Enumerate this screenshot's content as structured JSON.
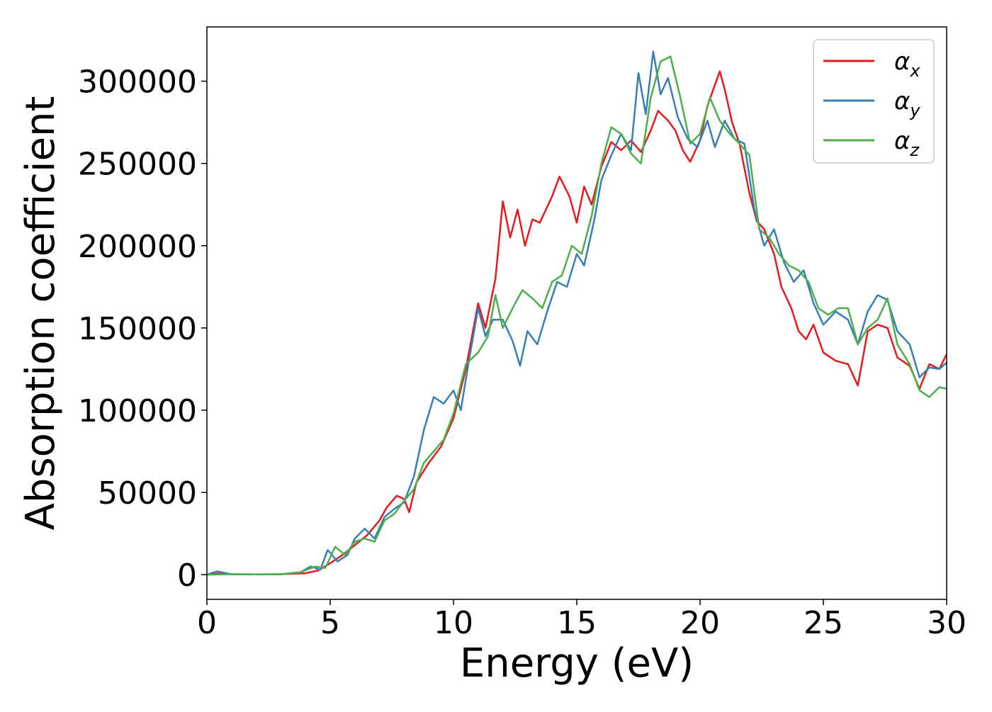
{
  "chart_data": {
    "type": "line",
    "xlabel": "Energy (eV)",
    "ylabel": "Absorption coefficient",
    "xlim": [
      0,
      30
    ],
    "ylim": [
      -15000,
      333000
    ],
    "xticks": [
      "0",
      "5",
      "10",
      "15",
      "20",
      "25",
      "30"
    ],
    "yticks": [
      "0",
      "50000",
      "100000",
      "150000",
      "200000",
      "250000",
      "300000"
    ],
    "grid": false,
    "legend_position": "top-right",
    "series": [
      {
        "name": "α",
        "subscript": "x",
        "color": "#e41a1c",
        "points": [
          [
            0,
            0
          ],
          [
            0.5,
            800
          ],
          [
            1,
            300
          ],
          [
            2,
            200
          ],
          [
            3,
            300
          ],
          [
            4,
            900
          ],
          [
            4.5,
            2500
          ],
          [
            5,
            7000
          ],
          [
            5.5,
            12000
          ],
          [
            6,
            18000
          ],
          [
            6.5,
            24000
          ],
          [
            7,
            33000
          ],
          [
            7.3,
            41000
          ],
          [
            7.7,
            48000
          ],
          [
            8,
            46000
          ],
          [
            8.2,
            38000
          ],
          [
            8.5,
            56000
          ],
          [
            9,
            68000
          ],
          [
            9.5,
            78000
          ],
          [
            10,
            95000
          ],
          [
            10.5,
            125000
          ],
          [
            11,
            165000
          ],
          [
            11.3,
            150000
          ],
          [
            11.7,
            180000
          ],
          [
            12,
            227000
          ],
          [
            12.3,
            205000
          ],
          [
            12.6,
            222000
          ],
          [
            12.9,
            200000
          ],
          [
            13.2,
            216000
          ],
          [
            13.5,
            214000
          ],
          [
            14,
            230000
          ],
          [
            14.3,
            242000
          ],
          [
            14.7,
            230000
          ],
          [
            15,
            214000
          ],
          [
            15.3,
            236000
          ],
          [
            15.6,
            225000
          ],
          [
            16,
            248000
          ],
          [
            16.4,
            263000
          ],
          [
            16.8,
            258000
          ],
          [
            17.2,
            264000
          ],
          [
            17.6,
            257000
          ],
          [
            18,
            270000
          ],
          [
            18.3,
            282000
          ],
          [
            18.7,
            276000
          ],
          [
            19,
            270000
          ],
          [
            19.3,
            258000
          ],
          [
            19.6,
            251000
          ],
          [
            20,
            264000
          ],
          [
            20.3,
            285000
          ],
          [
            20.8,
            306000
          ],
          [
            21,
            295000
          ],
          [
            21.3,
            275000
          ],
          [
            21.6,
            262000
          ],
          [
            22,
            232000
          ],
          [
            22.3,
            215000
          ],
          [
            22.6,
            210000
          ],
          [
            23,
            195000
          ],
          [
            23.3,
            175000
          ],
          [
            23.7,
            162000
          ],
          [
            24,
            148000
          ],
          [
            24.3,
            143000
          ],
          [
            24.6,
            152000
          ],
          [
            25,
            135000
          ],
          [
            25.5,
            130000
          ],
          [
            26,
            128000
          ],
          [
            26.4,
            115000
          ],
          [
            26.8,
            148000
          ],
          [
            27.2,
            152000
          ],
          [
            27.6,
            150000
          ],
          [
            28,
            132000
          ],
          [
            28.5,
            127000
          ],
          [
            28.9,
            113000
          ],
          [
            29.3,
            128000
          ],
          [
            29.7,
            125000
          ],
          [
            30,
            134000
          ]
        ]
      },
      {
        "name": "α",
        "subscript": "y",
        "color": "#377eb8",
        "points": [
          [
            0,
            0
          ],
          [
            0.4,
            2000
          ],
          [
            1,
            300
          ],
          [
            2,
            200
          ],
          [
            3,
            300
          ],
          [
            3.8,
            1500
          ],
          [
            4.2,
            5000
          ],
          [
            4.6,
            3000
          ],
          [
            4.9,
            15000
          ],
          [
            5.3,
            8000
          ],
          [
            5.7,
            12000
          ],
          [
            6,
            22000
          ],
          [
            6.4,
            28000
          ],
          [
            6.8,
            22000
          ],
          [
            7.2,
            35000
          ],
          [
            7.6,
            40000
          ],
          [
            8,
            44000
          ],
          [
            8.4,
            60000
          ],
          [
            8.8,
            88000
          ],
          [
            9.2,
            108000
          ],
          [
            9.6,
            104000
          ],
          [
            10,
            112000
          ],
          [
            10.3,
            100000
          ],
          [
            10.6,
            128000
          ],
          [
            11,
            162000
          ],
          [
            11.3,
            145000
          ],
          [
            11.6,
            155000
          ],
          [
            12,
            155000
          ],
          [
            12.4,
            142000
          ],
          [
            12.7,
            127000
          ],
          [
            13,
            148000
          ],
          [
            13.4,
            140000
          ],
          [
            13.8,
            160000
          ],
          [
            14.2,
            178000
          ],
          [
            14.6,
            175000
          ],
          [
            15,
            195000
          ],
          [
            15.3,
            188000
          ],
          [
            15.7,
            215000
          ],
          [
            16,
            240000
          ],
          [
            16.4,
            255000
          ],
          [
            16.8,
            268000
          ],
          [
            17.2,
            258000
          ],
          [
            17.5,
            305000
          ],
          [
            17.8,
            280000
          ],
          [
            18.1,
            318000
          ],
          [
            18.4,
            292000
          ],
          [
            18.7,
            302000
          ],
          [
            19.1,
            278000
          ],
          [
            19.5,
            265000
          ],
          [
            19.9,
            260000
          ],
          [
            20.3,
            276000
          ],
          [
            20.6,
            260000
          ],
          [
            21,
            276000
          ],
          [
            21.4,
            265000
          ],
          [
            21.8,
            262000
          ],
          [
            22.2,
            222000
          ],
          [
            22.6,
            200000
          ],
          [
            23,
            210000
          ],
          [
            23.4,
            190000
          ],
          [
            23.8,
            178000
          ],
          [
            24.2,
            185000
          ],
          [
            24.6,
            165000
          ],
          [
            25,
            152000
          ],
          [
            25.5,
            160000
          ],
          [
            26,
            155000
          ],
          [
            26.4,
            140000
          ],
          [
            26.8,
            160000
          ],
          [
            27.2,
            170000
          ],
          [
            27.6,
            167000
          ],
          [
            28,
            148000
          ],
          [
            28.5,
            140000
          ],
          [
            28.9,
            120000
          ],
          [
            29.3,
            126000
          ],
          [
            29.7,
            125000
          ],
          [
            30,
            129000
          ]
        ]
      },
      {
        "name": "α",
        "subscript": "z",
        "color": "#4daf4a",
        "points": [
          [
            0,
            0
          ],
          [
            1,
            300
          ],
          [
            2,
            200
          ],
          [
            3,
            300
          ],
          [
            3.8,
            1500
          ],
          [
            4.4,
            5000
          ],
          [
            4.8,
            4000
          ],
          [
            5.2,
            17000
          ],
          [
            5.6,
            12000
          ],
          [
            6,
            20000
          ],
          [
            6.4,
            22000
          ],
          [
            6.8,
            20000
          ],
          [
            7.2,
            33000
          ],
          [
            7.6,
            37000
          ],
          [
            8,
            45000
          ],
          [
            8.4,
            52000
          ],
          [
            8.8,
            68000
          ],
          [
            9.2,
            75000
          ],
          [
            9.6,
            82000
          ],
          [
            10,
            98000
          ],
          [
            10.5,
            128000
          ],
          [
            11,
            135000
          ],
          [
            11.4,
            145000
          ],
          [
            11.7,
            170000
          ],
          [
            12,
            150000
          ],
          [
            12.5,
            165000
          ],
          [
            12.8,
            173000
          ],
          [
            13.2,
            168000
          ],
          [
            13.6,
            162000
          ],
          [
            14,
            178000
          ],
          [
            14.4,
            182000
          ],
          [
            14.8,
            200000
          ],
          [
            15.2,
            195000
          ],
          [
            15.6,
            218000
          ],
          [
            16,
            250000
          ],
          [
            16.4,
            272000
          ],
          [
            16.8,
            268000
          ],
          [
            17.2,
            256000
          ],
          [
            17.6,
            250000
          ],
          [
            18,
            290000
          ],
          [
            18.4,
            312000
          ],
          [
            18.8,
            315000
          ],
          [
            19.2,
            290000
          ],
          [
            19.6,
            262000
          ],
          [
            20,
            268000
          ],
          [
            20.4,
            290000
          ],
          [
            20.8,
            276000
          ],
          [
            21.2,
            268000
          ],
          [
            21.6,
            262000
          ],
          [
            22,
            255000
          ],
          [
            22.4,
            210000
          ],
          [
            22.8,
            205000
          ],
          [
            23.2,
            195000
          ],
          [
            23.6,
            188000
          ],
          [
            24,
            185000
          ],
          [
            24.4,
            178000
          ],
          [
            24.8,
            162000
          ],
          [
            25.2,
            158000
          ],
          [
            25.6,
            162000
          ],
          [
            26,
            162000
          ],
          [
            26.4,
            140000
          ],
          [
            26.8,
            150000
          ],
          [
            27.2,
            155000
          ],
          [
            27.6,
            168000
          ],
          [
            28,
            140000
          ],
          [
            28.5,
            128000
          ],
          [
            28.9,
            112000
          ],
          [
            29.3,
            108000
          ],
          [
            29.7,
            114000
          ],
          [
            30,
            113000
          ]
        ]
      }
    ]
  }
}
